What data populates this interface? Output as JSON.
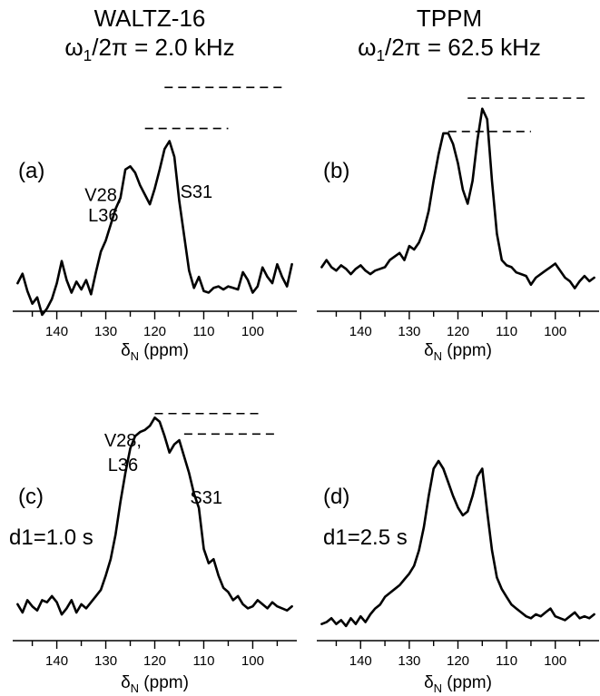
{
  "headers": [
    {
      "title": "WALTZ-16",
      "field_symbol": "ω",
      "field_sub": "1",
      "field_rest": "/2π = 2.0 kHz"
    },
    {
      "title": "TPPM",
      "field_symbol": "ω",
      "field_sub": "1",
      "field_rest": "/2π = 62.5 kHz"
    }
  ],
  "colors": {
    "trace": "#000000",
    "axis": "#000000",
    "dash": "#000000"
  },
  "chart_data": [
    {
      "type": "line",
      "panel_label": "(a)",
      "xlabel_symbol": "δ",
      "xlabel_sub": "N",
      "xlabel_unit": " (ppm)",
      "xlim": [
        149,
        91
      ],
      "x_reversed": true,
      "ticks": [
        140,
        130,
        120,
        110,
        100
      ],
      "ylim": [
        0,
        1
      ],
      "annotations": [
        {
          "text": "V28,",
          "x": 130.5,
          "y": 0.6
        },
        {
          "text": "L36",
          "x": 130.5,
          "y": 0.47
        },
        {
          "text": "S31",
          "x": 111.5,
          "y": 0.62
        }
      ],
      "peak_markers": [
        {
          "x_start": 118,
          "x_end": 94,
          "y": 1.32
        },
        {
          "x_start": 122,
          "x_end": 105,
          "y": 1.06
        }
      ],
      "series": [
        {
          "x": [
            148,
            147,
            146,
            145,
            144,
            143,
            142,
            141,
            140,
            139,
            138,
            137,
            136,
            135,
            134,
            133,
            132,
            131,
            130,
            129,
            128,
            127,
            126,
            125,
            124,
            123,
            122,
            121,
            120,
            119,
            118,
            117,
            116,
            115,
            114,
            113,
            112,
            111,
            110,
            109,
            108,
            107,
            106,
            105,
            104,
            103,
            102,
            101,
            100,
            99,
            98,
            97,
            96,
            95,
            94,
            93,
            92
          ],
          "y": [
            0.08,
            0.14,
            0.03,
            -0.05,
            -0.01,
            -0.12,
            -0.08,
            -0.02,
            0.08,
            0.22,
            0.1,
            0.02,
            0.09,
            0.04,
            0.1,
            0.01,
            0.15,
            0.28,
            0.35,
            0.45,
            0.55,
            0.62,
            0.8,
            0.82,
            0.78,
            0.7,
            0.64,
            0.58,
            0.68,
            0.8,
            0.93,
            0.98,
            0.88,
            0.6,
            0.38,
            0.16,
            0.05,
            0.12,
            0.03,
            0.02,
            0.05,
            0.06,
            0.04,
            0.06,
            0.05,
            0.04,
            0.15,
            0.1,
            0.02,
            0.06,
            0.18,
            0.12,
            0.08,
            0.2,
            0.12,
            0.06,
            0.2
          ]
        }
      ]
    },
    {
      "type": "line",
      "panel_label": "(b)",
      "xlabel_symbol": "δ",
      "xlabel_sub": "N",
      "xlabel_unit": " (ppm)",
      "xlim": [
        149,
        91
      ],
      "x_reversed": true,
      "ticks": [
        140,
        130,
        120,
        110,
        100
      ],
      "ylim": [
        0,
        1
      ],
      "annotations": [],
      "peak_markers": [
        {
          "x_start": 118,
          "x_end": 94,
          "y": 1.02
        },
        {
          "x_start": 122,
          "x_end": 105,
          "y": 0.83
        }
      ],
      "series": [
        {
          "x": [
            148,
            147,
            146,
            145,
            144,
            143,
            142,
            141,
            140,
            139,
            138,
            137,
            136,
            135,
            134,
            133,
            132,
            131,
            130,
            129,
            128,
            127,
            126,
            125,
            124,
            123,
            122,
            121,
            120,
            119,
            118,
            117,
            116,
            115,
            114,
            113,
            112,
            111,
            110,
            109,
            108,
            107,
            106,
            105,
            104,
            103,
            102,
            101,
            100,
            99,
            98,
            97,
            96,
            95,
            94,
            93,
            92
          ],
          "y": [
            0.06,
            0.1,
            0.06,
            0.04,
            0.07,
            0.05,
            0.02,
            0.05,
            0.07,
            0.04,
            0.02,
            0.04,
            0.05,
            0.06,
            0.1,
            0.12,
            0.14,
            0.1,
            0.18,
            0.16,
            0.2,
            0.27,
            0.38,
            0.55,
            0.7,
            0.82,
            0.82,
            0.76,
            0.65,
            0.5,
            0.42,
            0.55,
            0.78,
            0.96,
            0.9,
            0.55,
            0.25,
            0.1,
            0.07,
            0.06,
            0.03,
            0.02,
            0.01,
            -0.04,
            0.0,
            0.02,
            0.04,
            0.06,
            0.08,
            0.04,
            0.0,
            -0.02,
            -0.06,
            -0.02,
            0.01,
            -0.02,
            0.0
          ]
        }
      ]
    },
    {
      "type": "line",
      "panel_label": "(c)",
      "condition": "d1=1.0 s",
      "xlabel_symbol": "δ",
      "xlabel_sub": "N",
      "xlabel_unit": " (ppm)",
      "xlim": [
        149,
        91
      ],
      "x_reversed": true,
      "ticks": [
        140,
        130,
        120,
        110,
        100
      ],
      "ylim": [
        0,
        1
      ],
      "annotations": [
        {
          "text": "V28,",
          "x": 126.5,
          "y": 0.85
        },
        {
          "text": "L36",
          "x": 126.5,
          "y": 0.73
        },
        {
          "text": "S31",
          "x": 109.5,
          "y": 0.57
        }
      ],
      "peak_markers": [
        {
          "x_start": 120,
          "x_end": 98,
          "y": 1.01
        },
        {
          "x_start": 114,
          "x_end": 95,
          "y": 0.91
        }
      ],
      "series": [
        {
          "x": [
            148,
            147,
            146,
            145,
            144,
            143,
            142,
            141,
            140,
            139,
            138,
            137,
            136,
            135,
            134,
            133,
            132,
            131,
            130,
            129,
            128,
            127,
            126,
            125,
            124,
            123,
            122,
            121,
            120,
            119,
            118,
            117,
            116,
            115,
            114,
            113,
            112,
            111,
            110,
            109,
            108,
            107,
            106,
            105,
            104,
            103,
            102,
            101,
            100,
            99,
            98,
            97,
            96,
            95,
            94,
            93,
            92
          ],
          "y": [
            0.08,
            0.04,
            0.1,
            0.07,
            0.05,
            0.1,
            0.09,
            0.12,
            0.09,
            0.03,
            0.06,
            0.1,
            0.04,
            0.08,
            0.06,
            0.09,
            0.12,
            0.15,
            0.22,
            0.3,
            0.42,
            0.58,
            0.72,
            0.84,
            0.9,
            0.92,
            0.93,
            0.95,
            0.99,
            0.97,
            0.9,
            0.82,
            0.86,
            0.88,
            0.8,
            0.72,
            0.62,
            0.55,
            0.35,
            0.28,
            0.3,
            0.22,
            0.16,
            0.14,
            0.1,
            0.12,
            0.08,
            0.06,
            0.07,
            0.1,
            0.08,
            0.06,
            0.09,
            0.07,
            0.06,
            0.05,
            0.07
          ]
        }
      ]
    },
    {
      "type": "line",
      "panel_label": "(d)",
      "condition": "d1=2.5 s",
      "xlabel_symbol": "δ",
      "xlabel_sub": "N",
      "xlabel_unit": " (ppm)",
      "xlim": [
        149,
        91
      ],
      "x_reversed": true,
      "ticks": [
        140,
        130,
        120,
        110,
        100
      ],
      "ylim": [
        0,
        1
      ],
      "annotations": [],
      "peak_markers": [],
      "series": [
        {
          "x": [
            148,
            147,
            146,
            145,
            144,
            143,
            142,
            141,
            140,
            139,
            138,
            137,
            136,
            135,
            134,
            133,
            132,
            131,
            130,
            129,
            128,
            127,
            126,
            125,
            124,
            123,
            122,
            121,
            120,
            119,
            118,
            117,
            116,
            115,
            114,
            113,
            112,
            111,
            110,
            109,
            108,
            107,
            106,
            105,
            104,
            103,
            102,
            101,
            100,
            99,
            98,
            97,
            96,
            95,
            94,
            93,
            92
          ],
          "y": [
            0.02,
            0.03,
            0.05,
            0.02,
            0.04,
            0.01,
            0.05,
            0.02,
            0.06,
            0.03,
            0.07,
            0.1,
            0.12,
            0.16,
            0.18,
            0.2,
            0.22,
            0.25,
            0.28,
            0.32,
            0.4,
            0.52,
            0.68,
            0.82,
            0.86,
            0.82,
            0.75,
            0.68,
            0.62,
            0.58,
            0.6,
            0.68,
            0.78,
            0.82,
            0.6,
            0.4,
            0.26,
            0.2,
            0.16,
            0.12,
            0.1,
            0.08,
            0.06,
            0.05,
            0.07,
            0.06,
            0.08,
            0.1,
            0.06,
            0.05,
            0.04,
            0.06,
            0.08,
            0.05,
            0.06,
            0.05,
            0.07
          ]
        }
      ]
    }
  ]
}
